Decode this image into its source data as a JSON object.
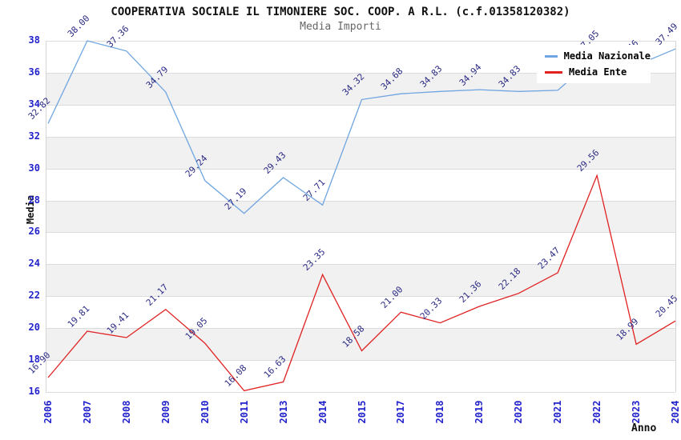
{
  "title": "COOPERATIVA SOCIALE IL TIMONIERE SOC. COOP. A R.L. (c.f.01358120382)",
  "subtitle": "Media Importi",
  "ylabel": "Media",
  "xlabel": "Anno",
  "colors": {
    "nazionale_line": "#6fa5e0",
    "ente_line": "#e02222",
    "tick_text": "#2222cc",
    "point_label_text": "#2b2b85",
    "band_gray": "#f1f1f1",
    "gridline": "#dcdcdc",
    "legend_bg": "#ffffff"
  },
  "legend": {
    "items": [
      {
        "label": "Media Nazionale",
        "color": "#6fa5e0"
      },
      {
        "label": "Media Ente",
        "color": "#e02222"
      }
    ]
  },
  "chart_data": {
    "type": "line",
    "title": "COOPERATIVA SOCIALE IL TIMONIERE SOC. COOP. A R.L. (c.f.01358120382)",
    "subtitle": "Media Importi",
    "xlabel": "Anno",
    "ylabel": "Media",
    "ylim": [
      16,
      38
    ],
    "yticks": [
      16,
      18,
      20,
      22,
      24,
      26,
      28,
      30,
      32,
      34,
      36,
      38
    ],
    "grid": "horizontal-bands",
    "legend_position": "top-right",
    "categories": [
      "2006",
      "2007",
      "2008",
      "2009",
      "2010",
      "2011",
      "2013",
      "2014",
      "2015",
      "2017",
      "2018",
      "2019",
      "2020",
      "2021",
      "2022",
      "2023",
      "2024"
    ],
    "series": [
      {
        "name": "Media Nazionale",
        "color": "#6fa5e0",
        "values": [
          32.82,
          38.0,
          37.36,
          34.79,
          29.24,
          27.19,
          29.43,
          27.71,
          34.32,
          34.68,
          34.83,
          34.94,
          34.83,
          34.9,
          37.05,
          36.46,
          37.49
        ],
        "point_labels": [
          "32.82",
          "38.00",
          "37.36",
          "34.79",
          "29.24",
          "27.19",
          "29.43",
          "27.71",
          "34.32",
          "34.68",
          "34.83",
          "34.94",
          "34.83",
          "",
          "37.05",
          "36.46",
          "37.49"
        ]
      },
      {
        "name": "Media Ente",
        "color": "#e02222",
        "values": [
          16.9,
          19.81,
          19.41,
          21.17,
          19.05,
          16.08,
          16.63,
          23.35,
          18.58,
          21.0,
          20.33,
          21.36,
          22.18,
          23.47,
          29.56,
          18.99,
          20.45
        ],
        "point_labels": [
          "16.90",
          "19.81",
          "19.41",
          "21.17",
          "19.05",
          "16.08",
          "16.63",
          "23.35",
          "18.58",
          "21.00",
          "20.33",
          "21.36",
          "22.18",
          "23.47",
          "29.56",
          "18.99",
          "20.45"
        ]
      }
    ]
  }
}
